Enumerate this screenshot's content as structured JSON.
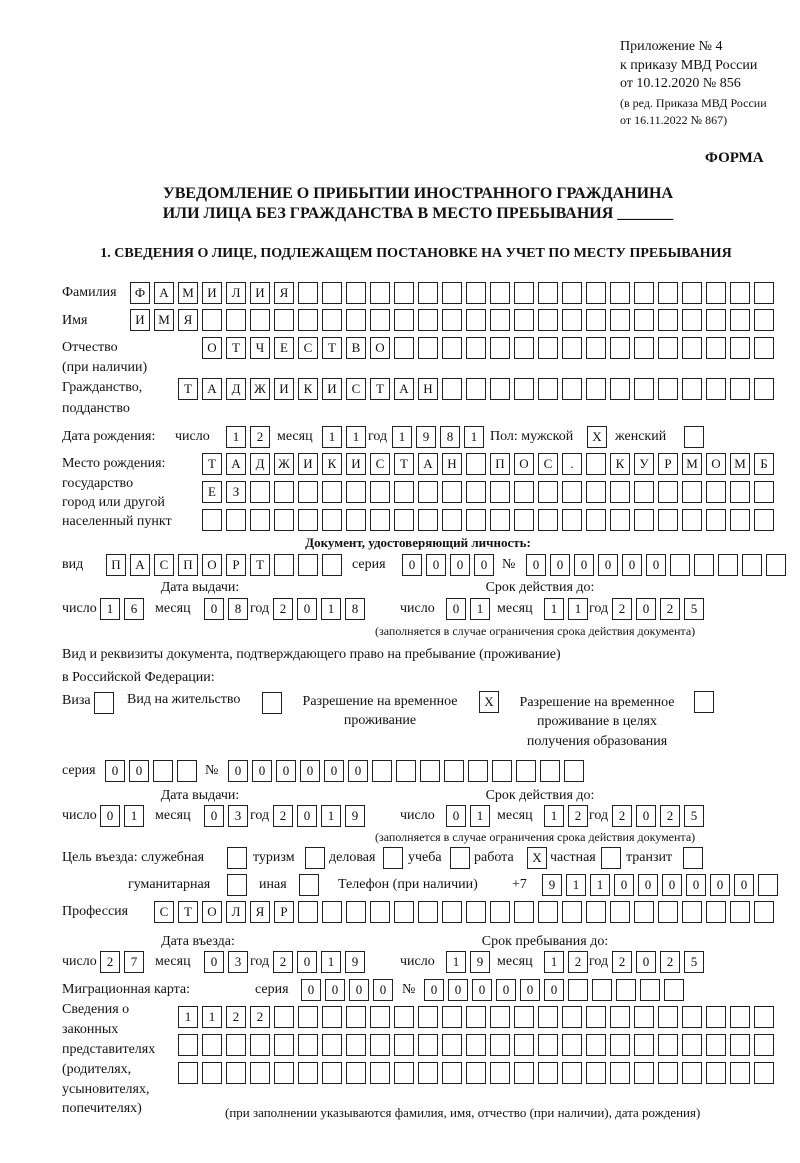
{
  "header": {
    "annex_line1": "Приложение № 4",
    "annex_line2": "к приказу МВД России",
    "annex_line3": "от 10.12.2020 № 856",
    "amend_line1": "(в ред. Приказа МВД России",
    "amend_line2": "от 16.11.2022 № 867)",
    "form_label": "ФОРМА",
    "title_line1": "УВЕДОМЛЕНИЕ О ПРИБЫТИИ ИНОСТРАННОГО ГРАЖДАНИНА",
    "title_line2": "ИЛИ ЛИЦА БЕЗ ГРАЖДАНСТВА В МЕСТО ПРЕБЫВАНИЯ _______",
    "section1": "1. СВЕДЕНИЯ О ЛИЦЕ, ПОДЛЕЖАЩЕМ ПОСТАНОВКЕ НА УЧЕТ ПО МЕСТУ ПРЕБЫВАНИЯ"
  },
  "labels": {
    "surname": "Фамилия",
    "name": "Имя",
    "patronymic": "Отчество",
    "patronymic_note": "(при наличии)",
    "citizenship": "Гражданство,",
    "citizenship2": "подданство",
    "birth_date": "Дата рождения:",
    "day": "число",
    "month": "месяц",
    "year": "год",
    "sex": "Пол: мужской",
    "female": "женский",
    "birthplace1": "Место рождения:",
    "birthplace2": "государство",
    "birthplace3": "город или другой",
    "birthplace4": "населенный пункт",
    "id_doc": "Документ, удостоверяющий личность:",
    "kind": "вид",
    "series": "серия",
    "number": "№",
    "issue_date": "Дата выдачи:",
    "valid_until": "Срок действия до:",
    "valid_note": "(заполняется в случае ограничения срока действия документа)",
    "stay_doc1": "Вид и реквизиты документа, подтверждающего право на пребывание (проживание)",
    "stay_doc2": "в Российской Федерации:",
    "visa": "Виза",
    "residence": "Вид на жительство",
    "trp1": "Разрешение на временное",
    "trp2": "проживание",
    "trpe1": "Разрешение на временное",
    "trpe2": "проживание в целях",
    "trpe3": "получения образования",
    "purpose": "Цель въезда: служебная",
    "tourism": "туризм",
    "business": "деловая",
    "study": "учеба",
    "work": "работа",
    "private": "частная",
    "transit": "транзит",
    "humanitarian": "гуманитарная",
    "other": "иная",
    "phone": "Телефон (при наличии)",
    "phone_prefix": "+7",
    "profession": "Профессия",
    "entry_date": "Дата въезда:",
    "stay_until": "Срок пребывания до:",
    "migration_card": "Миграционная карта:",
    "reps1": "Сведения о",
    "reps2": "законных",
    "reps3": "представителях",
    "reps4": "(родителях,",
    "reps5": "усыновителях,",
    "reps6": "попечителях)",
    "reps_note": "(при заполнении указываются фамилия, имя, отчество (при наличии), дата рождения)"
  },
  "person": {
    "surname": "ФАМИЛИЯ",
    "name": "ИМЯ",
    "patronymic": "ОТЧЕСТВО",
    "citizenship": "ТАДЖИКИСТАН",
    "birth_day": "12",
    "birth_month": "11",
    "birth_year": "1981",
    "sex_male": "X",
    "sex_female": "",
    "birthplace_row1": "ТАДЖИКИСТАН ПОС. КУРМОМБ",
    "birthplace_row2": "ЕЗ",
    "birthplace_row3": ""
  },
  "id_document": {
    "kind": "ПАСПОРТ",
    "series": "0000",
    "number": "000000",
    "issue_day": "16",
    "issue_month": "08",
    "issue_year": "2018",
    "valid_day": "01",
    "valid_month": "11",
    "valid_year": "2025"
  },
  "stay_document": {
    "visa": "",
    "residence_permit": "",
    "temporary_residence": "X",
    "temporary_residence_education": "",
    "series": "00",
    "number": "000000",
    "issue_day": "01",
    "issue_month": "03",
    "issue_year": "2019",
    "valid_day": "01",
    "valid_month": "12",
    "valid_year": "2025"
  },
  "purpose": {
    "official": "",
    "tourism": "",
    "business": "",
    "study": "",
    "work": "X",
    "private": "",
    "transit": "",
    "humanitarian": "",
    "other": ""
  },
  "phone": "911000000",
  "profession": "СТОЛЯР",
  "entry": {
    "entry_day": "27",
    "entry_month": "03",
    "entry_year": "2019",
    "until_day": "19",
    "until_month": "12",
    "until_year": "2025"
  },
  "migration_card": {
    "series": "0000",
    "number": "000000"
  },
  "representatives": {
    "row1": "1122",
    "row2": "",
    "row3": ""
  }
}
